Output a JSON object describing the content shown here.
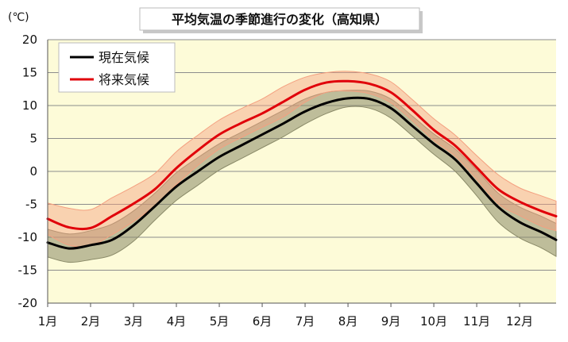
{
  "chart_data": {
    "type": "line",
    "title": "平均気温の季節進行の変化（高知県）",
    "ylabel": "(℃)",
    "xlabel": "",
    "ylim": [
      -20,
      20
    ],
    "yticks": [
      20,
      15,
      10,
      5,
      0,
      -5,
      -10,
      -15,
      -20
    ],
    "x_unit": "month",
    "xlim": [
      1,
      12.85
    ],
    "categories": [
      "1月",
      "2月",
      "3月",
      "4月",
      "5月",
      "6月",
      "7月",
      "8月",
      "9月",
      "10月",
      "11月",
      "12月"
    ],
    "grid": true,
    "legend_position": "top-left",
    "plot_background": "#fdfbd8",
    "x": [
      1.0,
      1.5,
      2.0,
      2.5,
      3.0,
      3.5,
      4.0,
      4.5,
      5.0,
      5.5,
      6.0,
      6.5,
      7.0,
      7.5,
      8.0,
      8.5,
      9.0,
      9.5,
      10.0,
      10.5,
      11.0,
      11.5,
      12.0,
      12.5,
      12.85
    ],
    "series": [
      {
        "name": "現在気候",
        "color": "#000000",
        "band_color": "#8a8a68",
        "values": [
          -10.8,
          -11.7,
          -11.2,
          -10.4,
          -8.2,
          -5.3,
          -2.3,
          0.0,
          2.2,
          3.9,
          5.6,
          7.3,
          9.1,
          10.4,
          11.1,
          11.0,
          9.6,
          6.9,
          4.2,
          1.8,
          -1.8,
          -5.4,
          -7.7,
          -9.2,
          -10.4
        ],
        "band_upper": [
          -8.8,
          -9.5,
          -9.0,
          -8.0,
          -6.0,
          -3.3,
          -0.2,
          2.1,
          4.2,
          5.9,
          7.6,
          9.3,
          11.0,
          12.0,
          12.3,
          12.2,
          11.0,
          8.4,
          5.7,
          3.4,
          0.2,
          -3.3,
          -5.4,
          -6.8,
          -7.9
        ],
        "band_lower": [
          -13.0,
          -13.8,
          -13.4,
          -12.7,
          -10.6,
          -7.4,
          -4.4,
          -2.1,
          0.2,
          1.9,
          3.6,
          5.3,
          7.2,
          8.8,
          9.8,
          9.6,
          8.1,
          5.4,
          2.6,
          0.0,
          -3.7,
          -7.7,
          -10.1,
          -11.6,
          -12.9
        ]
      },
      {
        "name": "将来気候",
        "color": "#e0000a",
        "band_color": "#f4a080",
        "values": [
          -7.2,
          -8.5,
          -8.6,
          -6.8,
          -4.9,
          -2.7,
          0.5,
          3.2,
          5.6,
          7.3,
          8.8,
          10.6,
          12.4,
          13.5,
          13.7,
          13.3,
          12.0,
          9.3,
          6.3,
          3.9,
          0.6,
          -2.7,
          -4.6,
          -6.0,
          -6.8
        ],
        "band_upper": [
          -4.8,
          -5.6,
          -5.8,
          -4.0,
          -2.3,
          -0.3,
          3.0,
          5.5,
          7.8,
          9.5,
          11.0,
          12.9,
          14.3,
          15.0,
          15.2,
          14.8,
          13.6,
          10.9,
          8.0,
          5.5,
          2.4,
          -0.5,
          -2.5,
          -3.7,
          -4.5
        ],
        "band_lower": [
          -9.6,
          -11.2,
          -11.3,
          -9.6,
          -7.6,
          -5.2,
          -2.0,
          0.9,
          3.4,
          5.1,
          6.7,
          8.3,
          10.5,
          12.0,
          12.2,
          11.8,
          10.4,
          7.7,
          4.7,
          2.3,
          -1.2,
          -4.9,
          -6.7,
          -8.3,
          -9.0
        ]
      }
    ]
  }
}
